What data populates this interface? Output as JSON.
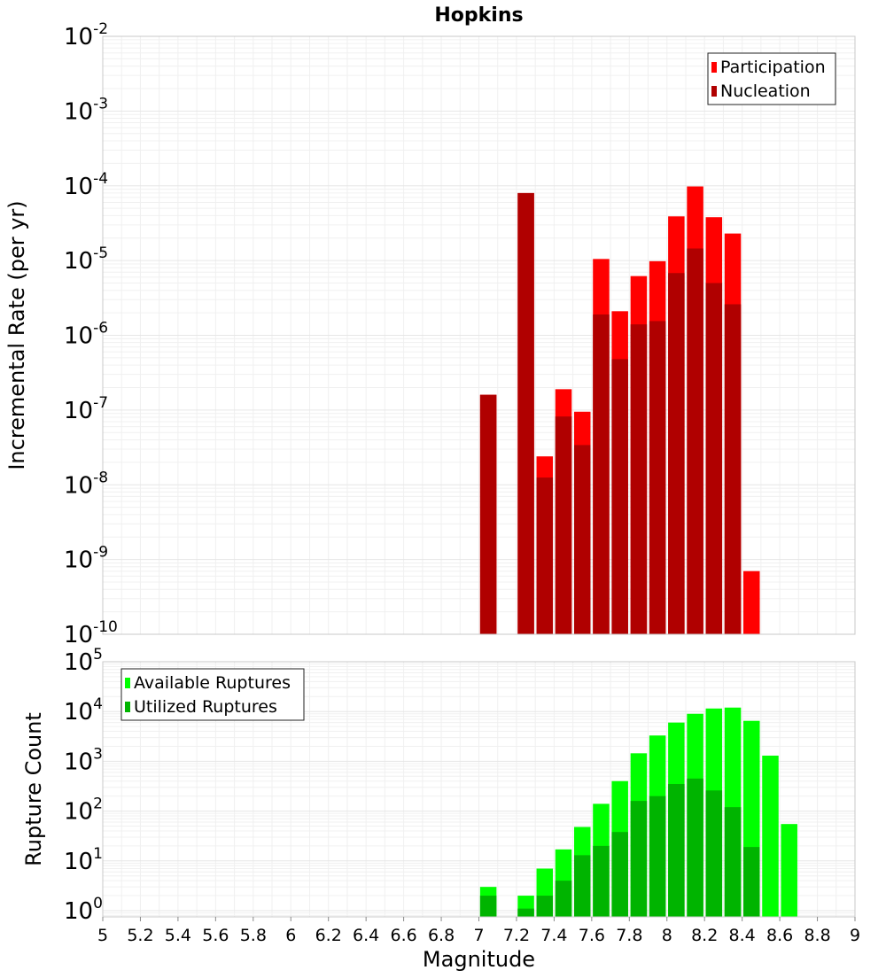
{
  "chart_data": [
    {
      "type": "bar",
      "title": "Hopkins",
      "ylabel": "Incremental Rate (per yr)",
      "xlabel": "",
      "xlim": [
        5,
        9
      ],
      "ylim": [
        1e-10,
        0.01
      ],
      "yscale": "log",
      "grid": true,
      "legend_position": "top-right",
      "y_tick_labels": [
        {
          "base": "10",
          "exp": "-10",
          "value": 1e-10
        },
        {
          "base": "10",
          "exp": "-9",
          "value": 1e-09
        },
        {
          "base": "10",
          "exp": "-8",
          "value": 1e-08
        },
        {
          "base": "10",
          "exp": "-7",
          "value": 1e-07
        },
        {
          "base": "10",
          "exp": "-6",
          "value": 1e-06
        },
        {
          "base": "10",
          "exp": "-5",
          "value": 1e-05
        },
        {
          "base": "10",
          "exp": "-4",
          "value": 0.0001
        },
        {
          "base": "10",
          "exp": "-3",
          "value": 0.001
        },
        {
          "base": "10",
          "exp": "-2",
          "value": 0.01
        }
      ],
      "x": [
        7.05,
        7.25,
        7.35,
        7.45,
        7.55,
        7.65,
        7.75,
        7.85,
        7.95,
        8.05,
        8.15,
        8.25,
        8.35,
        8.45
      ],
      "series": [
        {
          "name": "Participation",
          "color": "#ff0000",
          "values": [
            1.6e-07,
            8e-05,
            2.4e-08,
            1.9e-07,
            9.5e-08,
            1.05e-05,
            2.1e-06,
            6.2e-06,
            9.8e-06,
            3.9e-05,
            9.8e-05,
            3.8e-05,
            2.3e-05,
            7e-10
          ]
        },
        {
          "name": "Nucleation",
          "color": "#b00000",
          "values": [
            1.6e-07,
            8e-05,
            1.25e-08,
            8.2e-08,
            3.4e-08,
            1.9e-06,
            4.8e-07,
            1.4e-06,
            1.55e-06,
            6.8e-06,
            1.45e-05,
            5e-06,
            2.6e-06,
            null
          ]
        }
      ]
    },
    {
      "type": "bar",
      "title": "",
      "ylabel": "Rupture Count",
      "xlabel": "Magnitude",
      "xlim": [
        5,
        9
      ],
      "ylim": [
        0.75,
        100000.0
      ],
      "yscale": "log",
      "grid": true,
      "legend_position": "top-left",
      "y_tick_labels": [
        {
          "base": "10",
          "exp": "0",
          "value": 1
        },
        {
          "base": "10",
          "exp": "1",
          "value": 10
        },
        {
          "base": "10",
          "exp": "2",
          "value": 100
        },
        {
          "base": "10",
          "exp": "3",
          "value": 1000
        },
        {
          "base": "10",
          "exp": "4",
          "value": 10000
        },
        {
          "base": "10",
          "exp": "5",
          "value": 100000
        }
      ],
      "x_tick_labels": [
        "5",
        "5.2",
        "5.4",
        "5.6",
        "5.8",
        "6",
        "6.2",
        "6.4",
        "6.6",
        "6.8",
        "7",
        "7.2",
        "7.4",
        "7.6",
        "7.8",
        "8",
        "8.2",
        "8.4",
        "8.6",
        "8.8",
        "9"
      ],
      "x_tick_values": [
        5,
        5.2,
        5.4,
        5.6,
        5.8,
        6,
        6.2,
        6.4,
        6.6,
        6.8,
        7,
        7.2,
        7.4,
        7.6,
        7.8,
        8,
        8.2,
        8.4,
        8.6,
        8.8,
        9
      ],
      "x": [
        7.05,
        7.25,
        7.35,
        7.45,
        7.55,
        7.65,
        7.75,
        7.85,
        7.95,
        8.05,
        8.15,
        8.25,
        8.35,
        8.45,
        8.55,
        8.65
      ],
      "series": [
        {
          "name": "Available Ruptures",
          "color": "#00ff00",
          "values": [
            3,
            2,
            7,
            17,
            48,
            140,
            400,
            1450,
            3300,
            6000,
            9000,
            11500,
            12000,
            6500,
            1300,
            55
          ]
        },
        {
          "name": "Utilized Ruptures",
          "color": "#00b400",
          "values": [
            2,
            1.1,
            2,
            4,
            13,
            20,
            38,
            160,
            200,
            350,
            450,
            260,
            120,
            19,
            null,
            null
          ]
        }
      ]
    }
  ]
}
